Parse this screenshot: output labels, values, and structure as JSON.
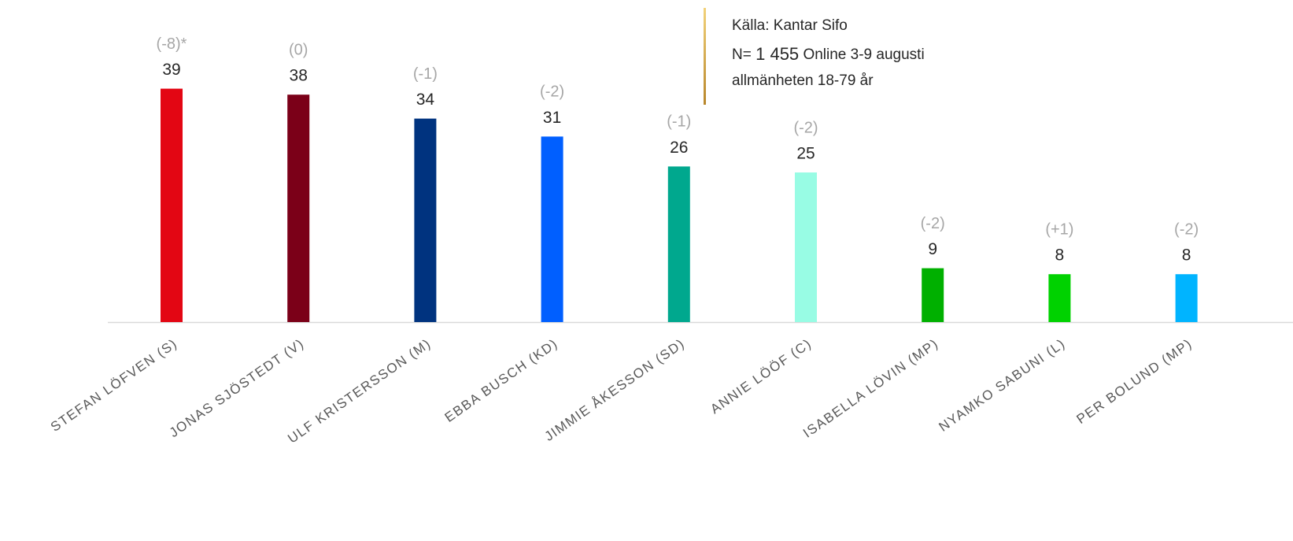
{
  "chart_data": {
    "type": "bar",
    "categories": [
      "STEFAN LÖFVEN (S)",
      "JONAS SJÖSTEDT (V)",
      "ULF KRISTERSSON (M)",
      "EBBA BUSCH (KD)",
      "JIMMIE ÅKESSON (SD)",
      "ANNIE LÖÖF (C)",
      "ISABELLA LÖVIN (MP)",
      "NYAMKO SABUNI (L)",
      "PER BOLUND (MP)"
    ],
    "values": [
      39,
      38,
      34,
      31,
      26,
      25,
      9,
      8,
      8
    ],
    "changes": [
      "(-8)*",
      "(0)",
      "(-1)",
      "(-2)",
      "(-1)",
      "(-2)",
      "(-2)",
      "(+1)",
      "(-2)"
    ],
    "colors": [
      "#e30613",
      "#7b0018",
      "#00337f",
      "#005fff",
      "#00a88e",
      "#98fce4",
      "#00b000",
      "#00d200",
      "#00b4ff"
    ],
    "source": {
      "line1": "Källa: Kantar Sifo",
      "line2_prefix": "N=",
      "line2_n": "1 455",
      "line2_suffix": "Online 3-9 augusti",
      "line3": "allmänheten 18-79 år"
    }
  }
}
